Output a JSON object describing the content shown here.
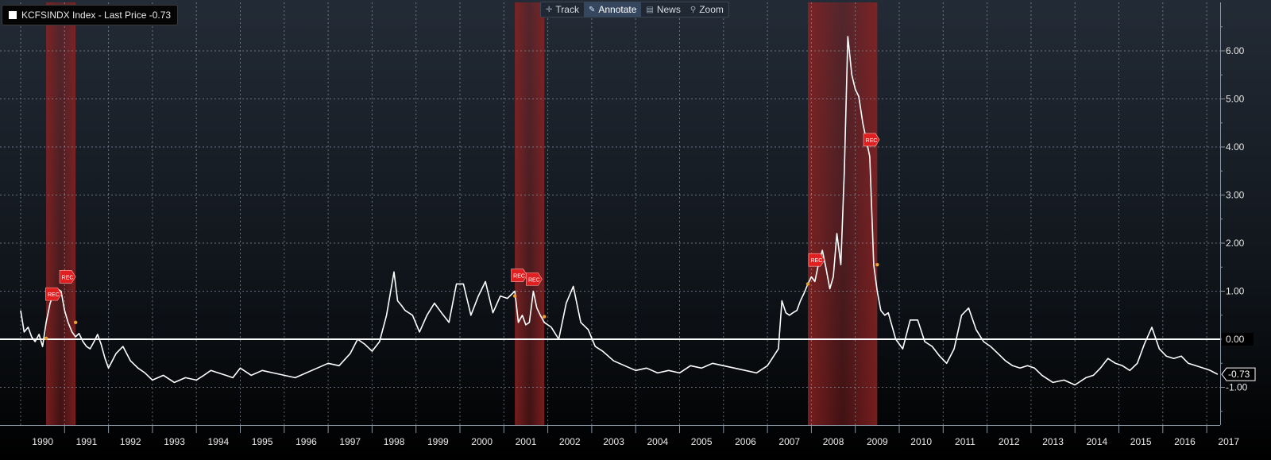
{
  "legend": {
    "text": "KCFSINDX Index - Last Price -0.73"
  },
  "toolbar": {
    "items": [
      {
        "label": "Track",
        "icon": "crosshair-icon",
        "active": false
      },
      {
        "label": "Annotate",
        "icon": "pencil-icon",
        "active": true
      },
      {
        "label": "News",
        "icon": "news-icon",
        "active": false
      },
      {
        "label": "Zoom",
        "icon": "magnifier-icon",
        "active": false
      }
    ]
  },
  "colors": {
    "line": "#ffffff",
    "zero_line": "#ffffff",
    "recession_band": "#8b2222",
    "rec_marker": "#e02020",
    "grid": "#8a96a4",
    "last_price_label_bg": "#000000"
  },
  "chart_data": {
    "type": "line",
    "title": "KCFSINDX Index - Last Price -0.73",
    "last_price": -0.73,
    "last_price_label": "-0.73",
    "x_start": 1990.0,
    "x_end": 2017.5,
    "x_ticks": [
      "1990",
      "1991",
      "1992",
      "1993",
      "1994",
      "1995",
      "1996",
      "1997",
      "1998",
      "1999",
      "2000",
      "2001",
      "2002",
      "2003",
      "2004",
      "2005",
      "2006",
      "2007",
      "2008",
      "2009",
      "2010",
      "2011",
      "2012",
      "2013",
      "2014",
      "2015",
      "2016",
      "2017"
    ],
    "y_ticks": [
      "-1.00",
      "0.00",
      "1.00",
      "2.00",
      "3.00",
      "4.00",
      "5.00",
      "6.00"
    ],
    "ylim": [
      -1.8,
      7.0
    ],
    "grid": true,
    "recessions": [
      {
        "start": 1990.58,
        "end": 1991.25
      },
      {
        "start": 2001.25,
        "end": 2001.92
      },
      {
        "start": 2007.92,
        "end": 2009.5
      }
    ],
    "rec_markers": [
      {
        "x": 1990.73,
        "y": 0.94,
        "text": "REC"
      },
      {
        "x": 1991.05,
        "y": 1.3,
        "text": "REC"
      },
      {
        "x": 2001.33,
        "y": 1.33,
        "text": "REC"
      },
      {
        "x": 2001.67,
        "y": 1.25,
        "text": "REC"
      },
      {
        "x": 2008.1,
        "y": 1.65,
        "text": "REC"
      },
      {
        "x": 2009.35,
        "y": 4.15,
        "text": "REC"
      }
    ],
    "series": [
      {
        "x": [
          1990.0,
          1990.08,
          1990.17,
          1990.25,
          1990.33,
          1990.42,
          1990.5,
          1990.58,
          1990.67,
          1990.75,
          1990.83,
          1990.92,
          1991.0,
          1991.08,
          1991.17,
          1991.25,
          1991.33,
          1991.42,
          1991.5,
          1991.58,
          1991.67,
          1991.75,
          1991.83,
          1991.92,
          1992.0,
          1992.17,
          1992.33,
          1992.5,
          1992.67,
          1992.83,
          1993.0,
          1993.25,
          1993.5,
          1993.75,
          1994.0,
          1994.17,
          1994.33,
          1994.5,
          1994.67,
          1994.83,
          1995.0,
          1995.25,
          1995.5,
          1995.75,
          1996.0,
          1996.25,
          1996.5,
          1996.75,
          1997.0,
          1997.25,
          1997.5,
          1997.67,
          1997.83,
          1998.0,
          1998.17,
          1998.33,
          1998.5,
          1998.58,
          1998.67,
          1998.75,
          1998.92,
          1999.08,
          1999.25,
          1999.42,
          1999.58,
          1999.75,
          1999.92,
          2000.08,
          2000.25,
          2000.42,
          2000.58,
          2000.75,
          2000.92,
          2001.08,
          2001.25,
          2001.33,
          2001.42,
          2001.5,
          2001.58,
          2001.67,
          2001.75,
          2001.83,
          2001.92,
          2002.08,
          2002.25,
          2002.42,
          2002.58,
          2002.75,
          2002.92,
          2003.08,
          2003.25,
          2003.5,
          2003.75,
          2004.0,
          2004.25,
          2004.5,
          2004.75,
          2005.0,
          2005.25,
          2005.5,
          2005.75,
          2006.0,
          2006.25,
          2006.5,
          2006.75,
          2007.0,
          2007.25,
          2007.33,
          2007.42,
          2007.5,
          2007.58,
          2007.67,
          2007.75,
          2007.83,
          2007.92,
          2008.0,
          2008.08,
          2008.17,
          2008.25,
          2008.33,
          2008.42,
          2008.5,
          2008.58,
          2008.67,
          2008.75,
          2008.83,
          2008.92,
          2009.0,
          2009.08,
          2009.17,
          2009.25,
          2009.33,
          2009.42,
          2009.5,
          2009.58,
          2009.67,
          2009.75,
          2009.92,
          2010.08,
          2010.25,
          2010.42,
          2010.58,
          2010.75,
          2010.92,
          2011.08,
          2011.25,
          2011.42,
          2011.58,
          2011.75,
          2011.92,
          2012.08,
          2012.25,
          2012.42,
          2012.58,
          2012.75,
          2012.92,
          2013.08,
          2013.25,
          2013.5,
          2013.75,
          2014.0,
          2014.25,
          2014.42,
          2014.58,
          2014.75,
          2014.92,
          2015.08,
          2015.25,
          2015.42,
          2015.58,
          2015.75,
          2015.92,
          2016.08,
          2016.25,
          2016.42,
          2016.58,
          2016.75,
          2016.92,
          2017.08,
          2017.25
        ],
        "y": [
          0.6,
          0.15,
          0.25,
          0.05,
          -0.05,
          0.1,
          -0.15,
          0.35,
          0.75,
          0.95,
          1.05,
          1.0,
          0.6,
          0.35,
          0.15,
          0.05,
          0.12,
          -0.05,
          -0.15,
          -0.2,
          -0.05,
          0.1,
          -0.1,
          -0.4,
          -0.6,
          -0.3,
          -0.15,
          -0.45,
          -0.6,
          -0.7,
          -0.85,
          -0.75,
          -0.9,
          -0.8,
          -0.85,
          -0.75,
          -0.65,
          -0.7,
          -0.75,
          -0.8,
          -0.6,
          -0.75,
          -0.65,
          -0.7,
          -0.75,
          -0.8,
          -0.7,
          -0.6,
          -0.5,
          -0.55,
          -0.3,
          0.0,
          -0.1,
          -0.25,
          -0.05,
          0.5,
          1.4,
          0.8,
          0.7,
          0.6,
          0.5,
          0.15,
          0.5,
          0.75,
          0.55,
          0.35,
          1.15,
          1.15,
          0.5,
          0.9,
          1.2,
          0.55,
          0.9,
          0.85,
          1.0,
          0.35,
          0.5,
          0.3,
          0.35,
          1.0,
          0.65,
          0.5,
          0.35,
          0.25,
          0.0,
          0.75,
          1.1,
          0.35,
          0.2,
          -0.15,
          -0.25,
          -0.45,
          -0.55,
          -0.65,
          -0.6,
          -0.7,
          -0.65,
          -0.7,
          -0.55,
          -0.6,
          -0.5,
          -0.55,
          -0.6,
          -0.65,
          -0.7,
          -0.55,
          -0.2,
          0.8,
          0.55,
          0.5,
          0.55,
          0.6,
          0.8,
          0.95,
          1.15,
          1.3,
          1.2,
          1.6,
          1.85,
          1.5,
          1.05,
          1.3,
          2.2,
          1.55,
          3.5,
          6.3,
          5.5,
          5.2,
          5.05,
          4.5,
          4.15,
          3.8,
          1.55,
          1.0,
          0.6,
          0.5,
          0.55,
          0.0,
          -0.2,
          0.4,
          0.4,
          -0.05,
          -0.15,
          -0.35,
          -0.5,
          -0.2,
          0.5,
          0.65,
          0.2,
          -0.05,
          -0.15,
          -0.3,
          -0.45,
          -0.55,
          -0.6,
          -0.55,
          -0.6,
          -0.75,
          -0.9,
          -0.85,
          -0.95,
          -0.8,
          -0.75,
          -0.6,
          -0.4,
          -0.5,
          -0.55,
          -0.65,
          -0.5,
          -0.1,
          0.25,
          -0.2,
          -0.35,
          -0.4,
          -0.35,
          -0.5,
          -0.55,
          -0.6,
          -0.65,
          -0.73
        ]
      }
    ]
  }
}
